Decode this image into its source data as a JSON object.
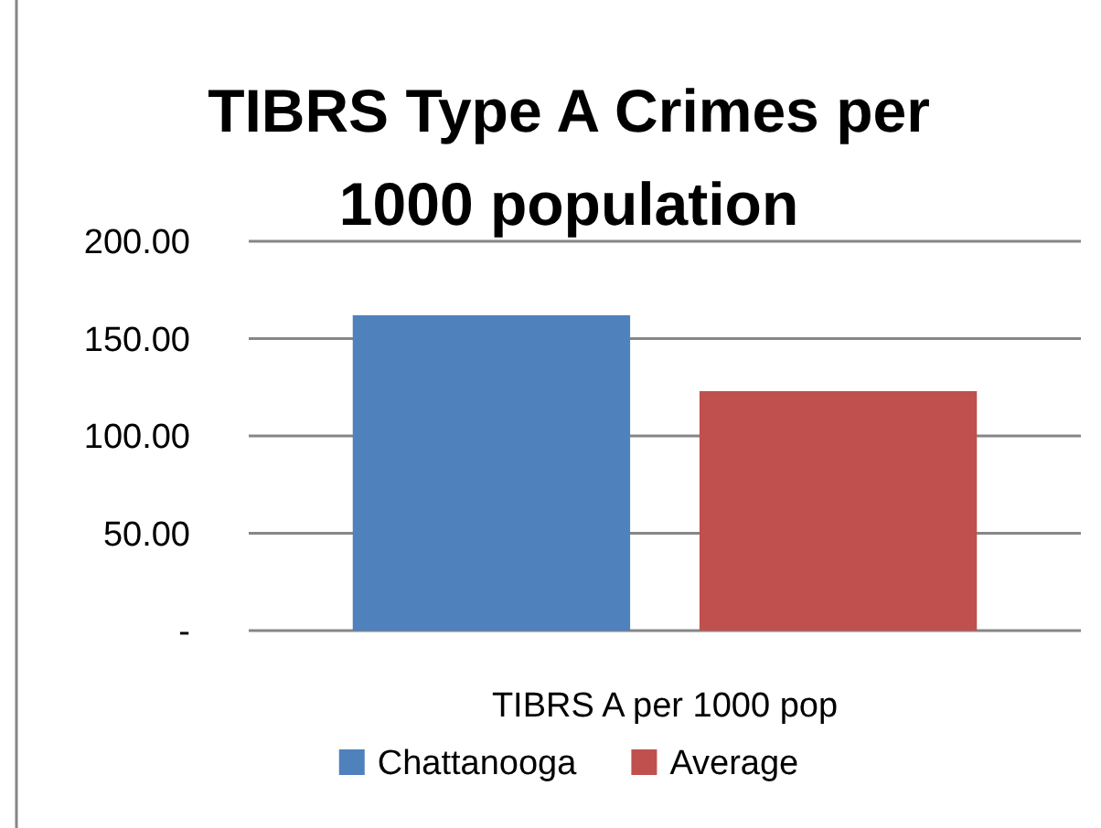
{
  "chart_data": {
    "type": "bar",
    "title": "TIBRS Type A Crimes per 1000 population",
    "categories": [
      "TIBRS A per 1000 pop"
    ],
    "series": [
      {
        "name": "Chattanooga",
        "color": "#4f81bd",
        "values": [
          162
        ]
      },
      {
        "name": "Average",
        "color": "#c0504d",
        "values": [
          123
        ]
      }
    ],
    "ylim": [
      0,
      200
    ],
    "yticks": [
      {
        "value": 0,
        "label": "-"
      },
      {
        "value": 50,
        "label": "50.00"
      },
      {
        "value": 100,
        "label": "100.00"
      },
      {
        "value": 150,
        "label": "150.00"
      },
      {
        "value": 200,
        "label": "200.00"
      }
    ],
    "grid": "y",
    "legend": "bottom"
  }
}
